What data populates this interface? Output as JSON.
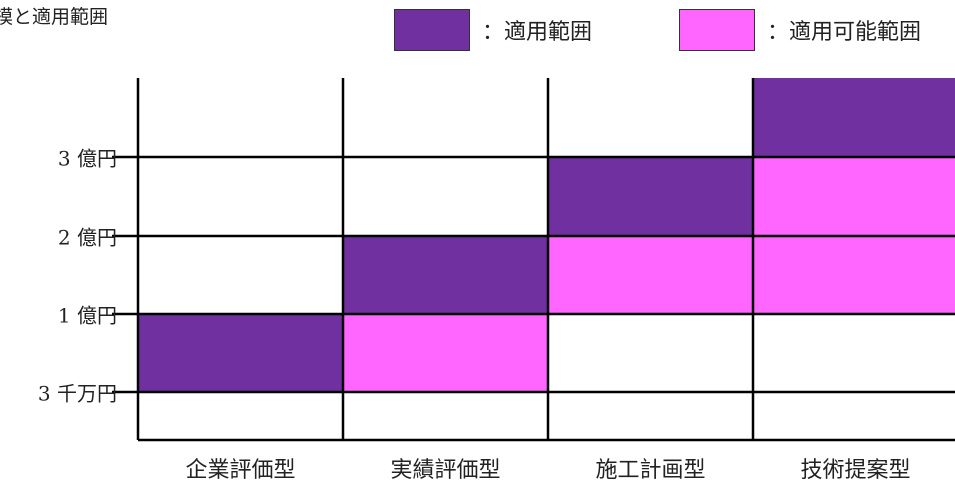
{
  "title": "模と適用範囲",
  "colors": {
    "applicable": "#7030a0",
    "possible": "#ff66ff",
    "empty": "#ffffff",
    "line": "#000000"
  },
  "legend": [
    {
      "key": "applicable",
      "label": "：適用範囲"
    },
    {
      "key": "possible",
      "label": "：適用可能範囲"
    }
  ],
  "y_labels": [
    "3 億円",
    "2 億円",
    "1 億円",
    "3 千万円"
  ],
  "columns": [
    {
      "label": "企業評価型",
      "cells": [
        "empty",
        "empty",
        "empty",
        "applicable",
        "empty"
      ]
    },
    {
      "label": "実績評価型",
      "cells": [
        "empty",
        "empty",
        "applicable",
        "possible",
        "empty"
      ]
    },
    {
      "label": "施工計画型",
      "cells": [
        "empty",
        "applicable",
        "possible",
        "empty",
        "empty"
      ]
    },
    {
      "label": "技術提案型",
      "cells": [
        "applicable",
        "possible",
        "possible",
        "empty",
        "empty"
      ]
    }
  ]
}
